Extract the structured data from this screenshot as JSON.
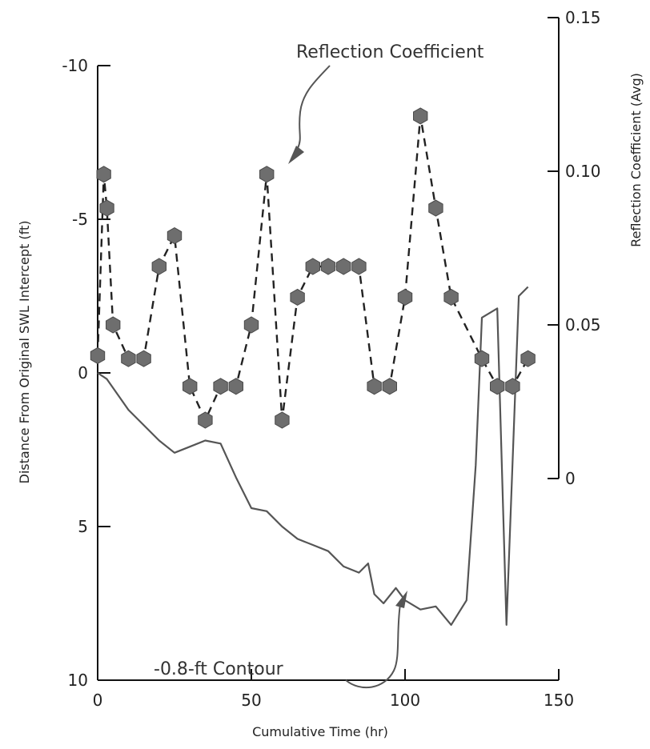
{
  "chart_data": {
    "type": "line",
    "xlabel": "Cumulative Time (hr)",
    "ylabel_left": "Distance From Original SWL Intercept (ft)",
    "ylabel_right": "Reflection Coefficient (Avg)",
    "xlim": [
      0,
      150
    ],
    "ylim_left": [
      -10,
      10
    ],
    "ylim_right": [
      0,
      0.15
    ],
    "x_ticks": [
      "0",
      "50",
      "100",
      "150"
    ],
    "y_ticks_left": [
      "-10",
      "-5",
      "0",
      "5",
      "10"
    ],
    "y_ticks_right": [
      "0.15",
      "0.10",
      "0.05",
      "0"
    ],
    "annotations": {
      "reflection": "Reflection Coefficient",
      "contour": "-0.8-ft Contour"
    },
    "series": [
      {
        "name": "-0.8-ft Contour",
        "axis": "left",
        "x": [
          0,
          3,
          10,
          20,
          25,
          30,
          35,
          40,
          45,
          50,
          55,
          60,
          65,
          70,
          75,
          80,
          85,
          88,
          90,
          93,
          97,
          100,
          105,
          110,
          115,
          120,
          123,
          125,
          130,
          133,
          137,
          140
        ],
        "y": [
          0,
          0.2,
          1.2,
          2.2,
          2.6,
          2.4,
          2.2,
          2.3,
          3.4,
          4.4,
          4.5,
          5.0,
          5.4,
          5.6,
          5.8,
          6.3,
          6.5,
          6.2,
          7.2,
          7.5,
          7.0,
          7.4,
          7.7,
          7.6,
          8.2,
          7.4,
          3.0,
          -1.8,
          -2.1,
          8.2,
          -2.5,
          -2.8
        ]
      },
      {
        "name": "Reflection Coefficient",
        "axis": "right",
        "x": [
          0,
          2,
          3,
          5,
          10,
          15,
          20,
          25,
          30,
          35,
          40,
          45,
          50,
          55,
          60,
          65,
          70,
          75,
          80,
          85,
          90,
          95,
          100,
          105,
          110,
          115,
          125,
          130,
          135,
          140
        ],
        "y": [
          0.04,
          0.099,
          0.088,
          0.05,
          0.039,
          0.039,
          0.069,
          0.079,
          0.03,
          0.019,
          0.03,
          0.03,
          0.05,
          0.099,
          0.019,
          0.059,
          0.069,
          0.069,
          0.069,
          0.069,
          0.03,
          0.03,
          0.059,
          0.118,
          0.088,
          0.059,
          0.039,
          0.03,
          0.03,
          0.039
        ]
      }
    ],
    "colors": {
      "contour_line": "#555555",
      "reflection_dash": "#222222",
      "marker_fill": "#6e6e6e",
      "axis": "#111111"
    }
  }
}
